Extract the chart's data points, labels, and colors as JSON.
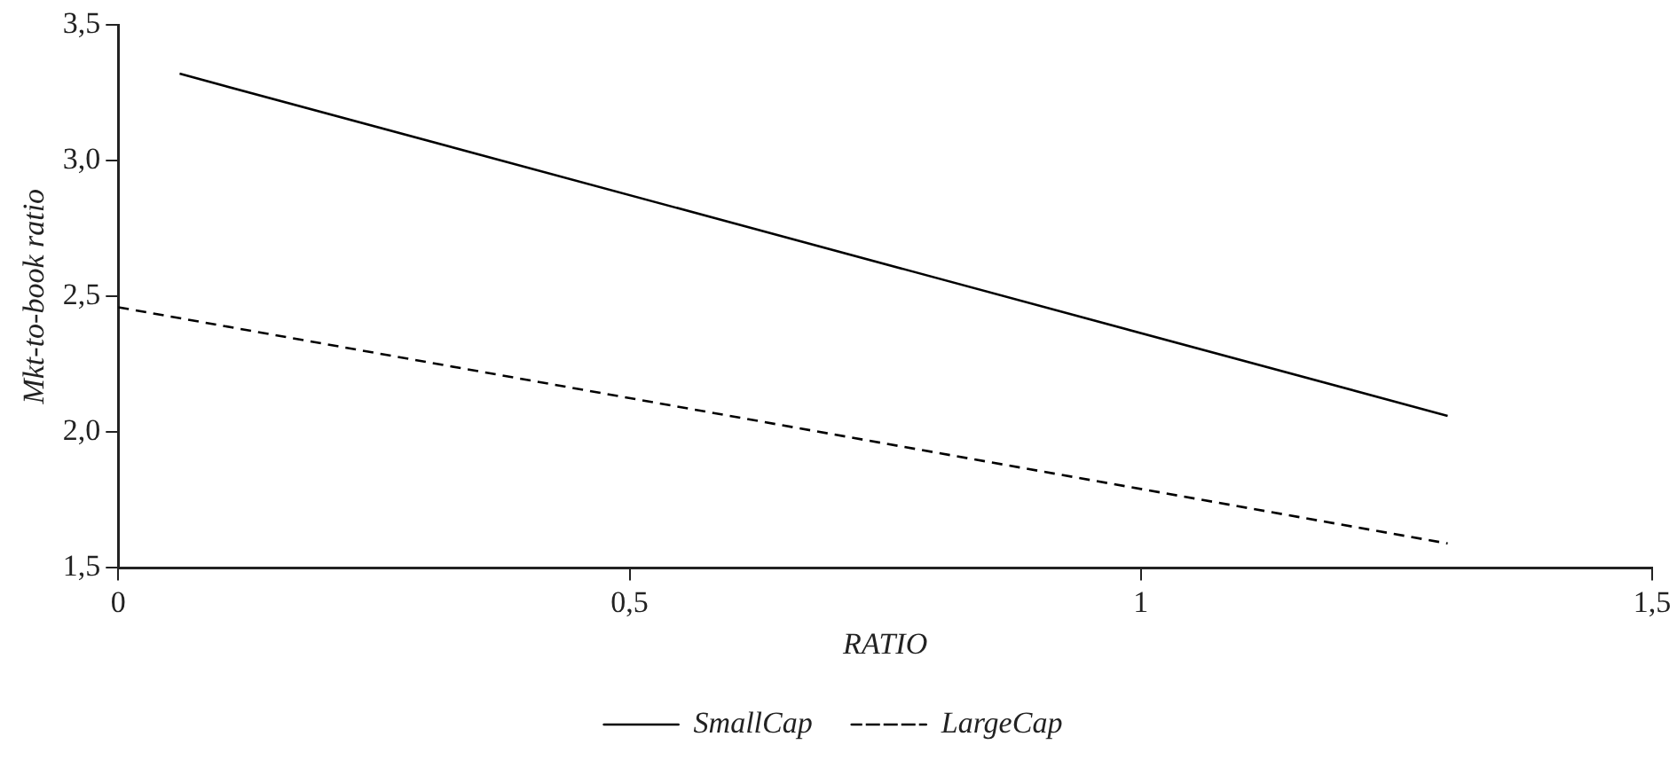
{
  "chart_data": {
    "type": "line",
    "xlabel": "RATIO",
    "ylabel": "Mkt-to-book ratio",
    "xlim": [
      0,
      1.5
    ],
    "xticks": [
      0,
      {
        "value": 0.5,
        "label": "0,5"
      },
      1,
      {
        "value": 1.5,
        "label": "1,5"
      }
    ],
    "ylim": [
      1.5,
      3.5
    ],
    "yticks": [
      {
        "value": 1.5,
        "label": "1,5"
      },
      {
        "value": 2,
        "label": "2,0"
      },
      {
        "value": 2.5,
        "label": "2,5"
      },
      {
        "value": 3,
        "label": "3,0"
      },
      {
        "value": 3.5,
        "label": "3,5"
      }
    ],
    "grid": false,
    "legend": "bottom",
    "marker": "none",
    "series": [
      {
        "name": "SmallCap",
        "color": "#000000",
        "line_style": "solid",
        "x": [
          0.06,
          1.3
        ],
        "values": [
          3.32,
          2.06
        ]
      },
      {
        "name": "LargeCap",
        "color": "#000000",
        "line_style": "dashed",
        "x": [
          0,
          1.3
        ],
        "values": [
          2.46,
          1.59
        ]
      }
    ]
  }
}
